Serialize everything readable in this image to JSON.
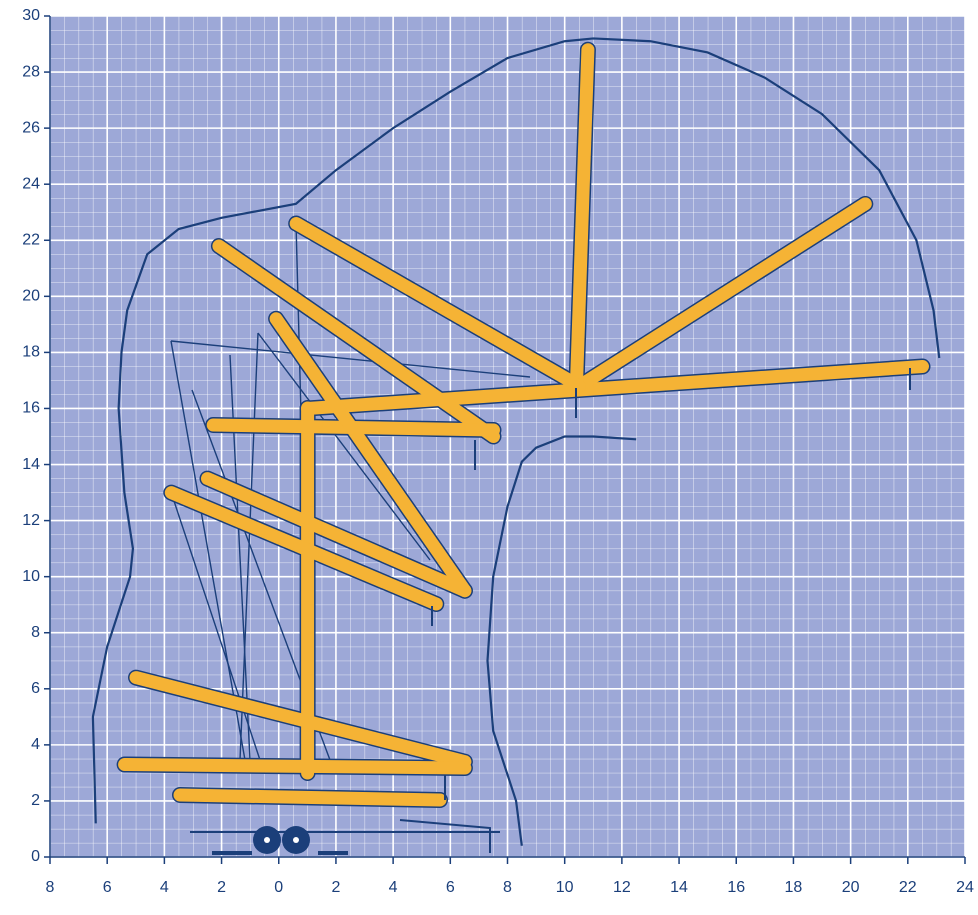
{
  "chart_data": {
    "type": "line",
    "xlim": [
      -8,
      24
    ],
    "ylim": [
      0,
      30
    ],
    "xticks": [
      {
        "value": -8,
        "label": "8"
      },
      {
        "value": -6,
        "label": "6"
      },
      {
        "value": -4,
        "label": "4"
      },
      {
        "value": -2,
        "label": "2"
      },
      0,
      2,
      4,
      6,
      8,
      10,
      12,
      14,
      16,
      18,
      20,
      22,
      24
    ],
    "yticks": [
      0,
      2,
      4,
      6,
      8,
      10,
      12,
      14,
      16,
      18,
      20,
      22,
      24,
      26,
      28,
      30
    ],
    "grid": true,
    "background": "#9da8d7",
    "series": [
      {
        "color": "#1b3f7a",
        "x": [
          -6.4,
          -6.5,
          -6.0,
          -5.2,
          -5.1,
          -5.4,
          -5.6,
          -5.5,
          -5.3,
          -4.6,
          -3.5,
          -2.0,
          0.6,
          2,
          4,
          6,
          8,
          10,
          11,
          13,
          15,
          17,
          19,
          21,
          22.3,
          22.9,
          23.1
        ],
        "y": [
          1.2,
          5,
          7.5,
          10,
          11,
          13,
          16,
          18,
          19.5,
          21.5,
          22.4,
          22.8,
          23.3,
          24.5,
          26,
          27.3,
          28.5,
          29.1,
          29.2,
          29.1,
          28.7,
          27.8,
          26.5,
          24.5,
          22,
          19.5,
          17.8
        ]
      },
      {
        "color": "#1b3f7a",
        "x": [
          8.5,
          8.3,
          7.5,
          7.3,
          7.5,
          8.0,
          8.5,
          9,
          10,
          11,
          12.5
        ],
        "y": [
          0.4,
          2,
          4.5,
          7,
          10,
          12.5,
          14.1,
          14.6,
          15,
          15,
          14.9
        ]
      }
    ]
  }
}
